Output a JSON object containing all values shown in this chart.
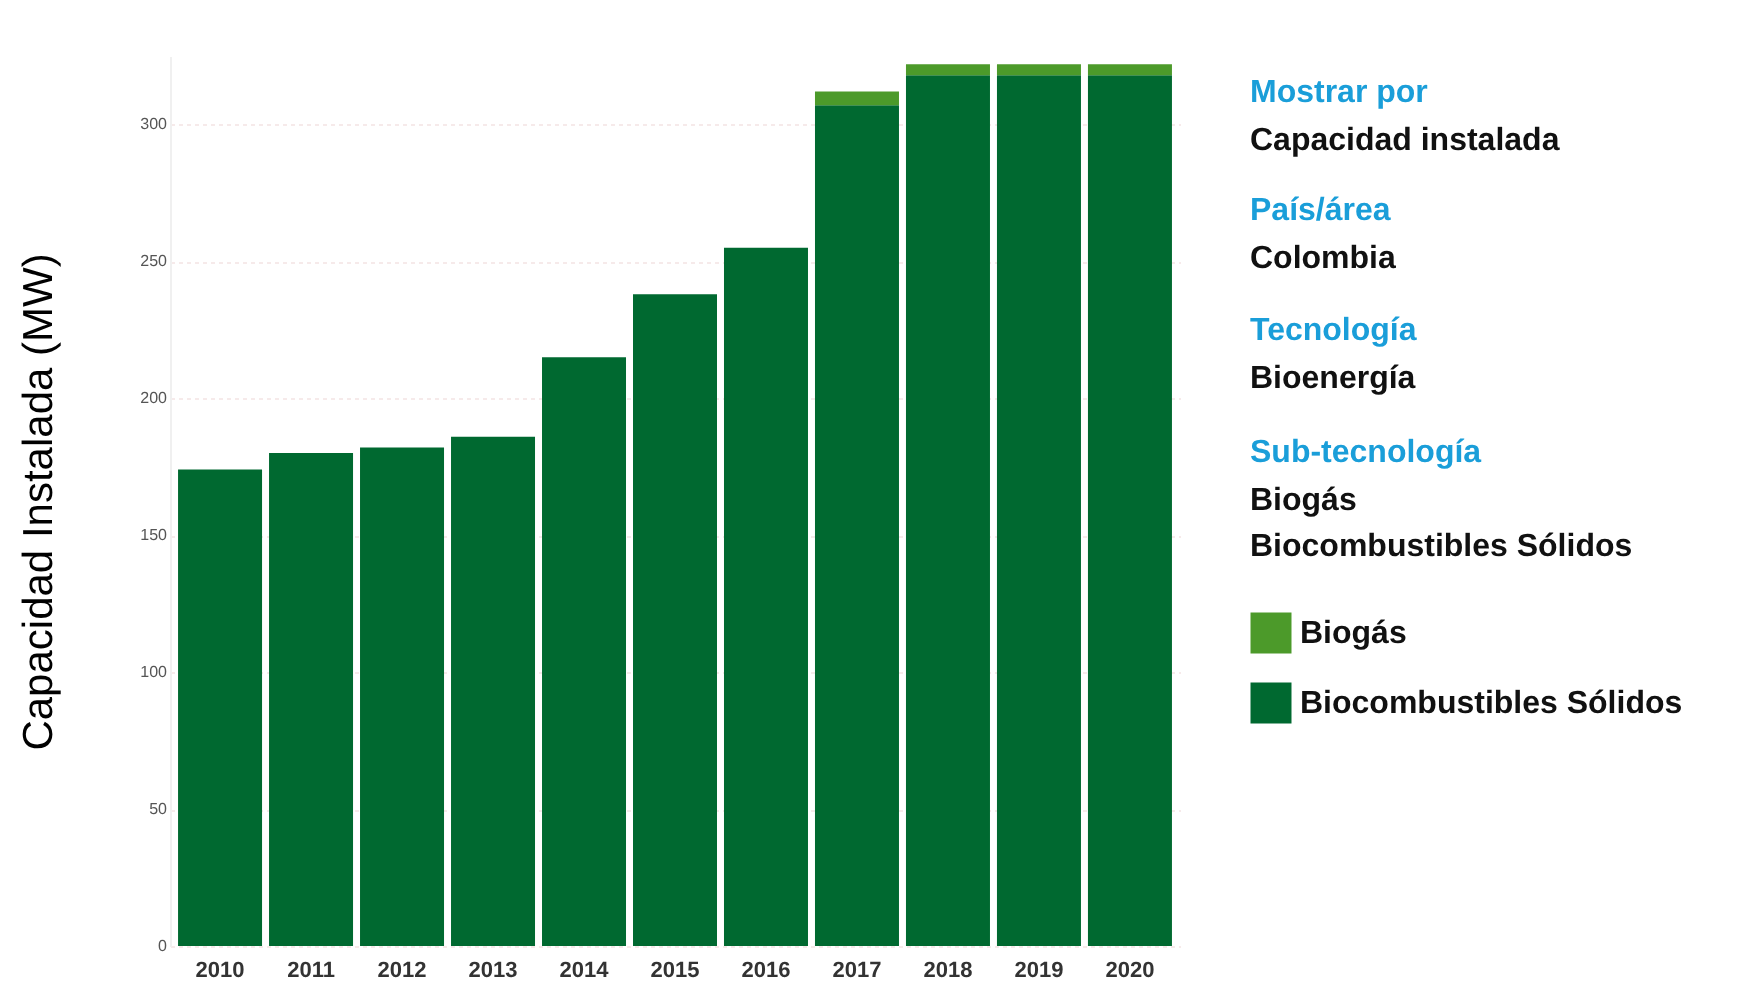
{
  "chart_data": {
    "type": "bar",
    "stacked": true,
    "ylabel": "Capacidad Instalada (MW)",
    "categories": [
      "2010",
      "2011",
      "2012",
      "2013",
      "2014",
      "2015",
      "2016",
      "2017",
      "2018",
      "2019",
      "2020"
    ],
    "series": [
      {
        "name": "Biocombustibles Sólidos",
        "color": "#006930",
        "values": [
          174,
          180,
          182,
          186,
          215,
          238,
          255,
          307,
          318,
          318,
          318
        ]
      },
      {
        "name": "Biogás",
        "color": "#4c9a2a",
        "values": [
          null,
          null,
          null,
          null,
          null,
          null,
          null,
          5,
          4,
          4,
          4
        ]
      }
    ],
    "ylim": [
      0,
      325
    ],
    "yticks": [
      0,
      50,
      100,
      150,
      200,
      250,
      300
    ],
    "grid": "y",
    "legend": "right",
    "annotations": [
      "Mostrar por",
      "Capacidad instalada",
      "País/área",
      "Colombia",
      "Tecnología",
      "Bioenergía",
      "Sub-tecnología",
      "Biogás",
      "Biocombustibles Sólidos"
    ]
  }
}
